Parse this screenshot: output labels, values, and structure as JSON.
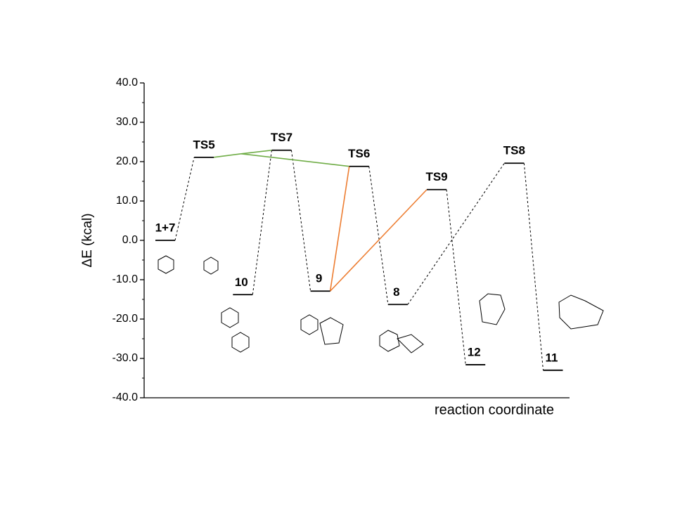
{
  "chart_data": {
    "type": "energy-diagram",
    "y_label": "ΔE (kcal)",
    "x_label": "reaction coordinate",
    "categories": [
      "1+7",
      "TS5",
      "10",
      "TS7",
      "9",
      "TS6",
      "8",
      "TS9",
      "12",
      "TS8",
      "11"
    ],
    "values": [
      0.0,
      21.1,
      -13.8,
      22.9,
      -12.9,
      18.8,
      -16.3,
      12.9,
      -31.6,
      19.6,
      -33.0
    ],
    "color": "#000000",
    "link_colors": [
      "#000000",
      "#70ad47",
      "#ed7d31"
    ],
    "ylim": [
      -40,
      40
    ],
    "yticks": [
      {
        "value": -40,
        "label": "-40.0"
      },
      {
        "value": -30,
        "label": "-30.0"
      },
      {
        "value": -20,
        "label": "-20.0"
      },
      {
        "value": -10,
        "label": "-10.0"
      },
      {
        "value": 0,
        "label": "0.0"
      },
      {
        "value": 10,
        "label": "10.0"
      },
      {
        "value": 20,
        "label": "20.0"
      },
      {
        "value": 30,
        "label": "30.0"
      },
      {
        "value": 40,
        "label": "40.0"
      }
    ],
    "yminorticks": [
      -35,
      -25,
      -15,
      -5,
      5,
      15,
      25,
      35
    ]
  }
}
